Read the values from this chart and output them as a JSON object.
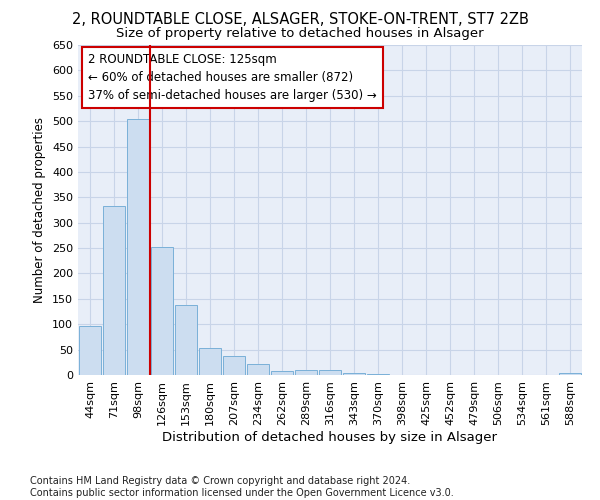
{
  "title1": "2, ROUNDTABLE CLOSE, ALSAGER, STOKE-ON-TRENT, ST7 2ZB",
  "title2": "Size of property relative to detached houses in Alsager",
  "xlabel": "Distribution of detached houses by size in Alsager",
  "ylabel": "Number of detached properties",
  "categories": [
    "44sqm",
    "71sqm",
    "98sqm",
    "126sqm",
    "153sqm",
    "180sqm",
    "207sqm",
    "234sqm",
    "262sqm",
    "289sqm",
    "316sqm",
    "343sqm",
    "370sqm",
    "398sqm",
    "425sqm",
    "452sqm",
    "479sqm",
    "506sqm",
    "534sqm",
    "561sqm",
    "588sqm"
  ],
  "values": [
    96,
    333,
    505,
    252,
    137,
    54,
    37,
    21,
    8,
    10,
    10,
    4,
    1,
    0,
    0,
    0,
    0,
    0,
    0,
    0,
    4
  ],
  "bar_color": "#ccddf0",
  "bar_edge_color": "#7ab0d8",
  "grid_color": "#c8d4e8",
  "bg_color": "#e8eef8",
  "vline_color": "#cc0000",
  "vline_x": 2.5,
  "annotation_text": "2 ROUNDTABLE CLOSE: 125sqm\n← 60% of detached houses are smaller (872)\n37% of semi-detached houses are larger (530) →",
  "annotation_box_color": "#cc0000",
  "ylim": [
    0,
    650
  ],
  "yticks": [
    0,
    50,
    100,
    150,
    200,
    250,
    300,
    350,
    400,
    450,
    500,
    550,
    600,
    650
  ],
  "footnote": "Contains HM Land Registry data © Crown copyright and database right 2024.\nContains public sector information licensed under the Open Government Licence v3.0.",
  "title1_fontsize": 10.5,
  "title2_fontsize": 9.5,
  "xlabel_fontsize": 9.5,
  "ylabel_fontsize": 8.5,
  "tick_fontsize": 8,
  "annotation_fontsize": 8.5,
  "footnote_fontsize": 7
}
